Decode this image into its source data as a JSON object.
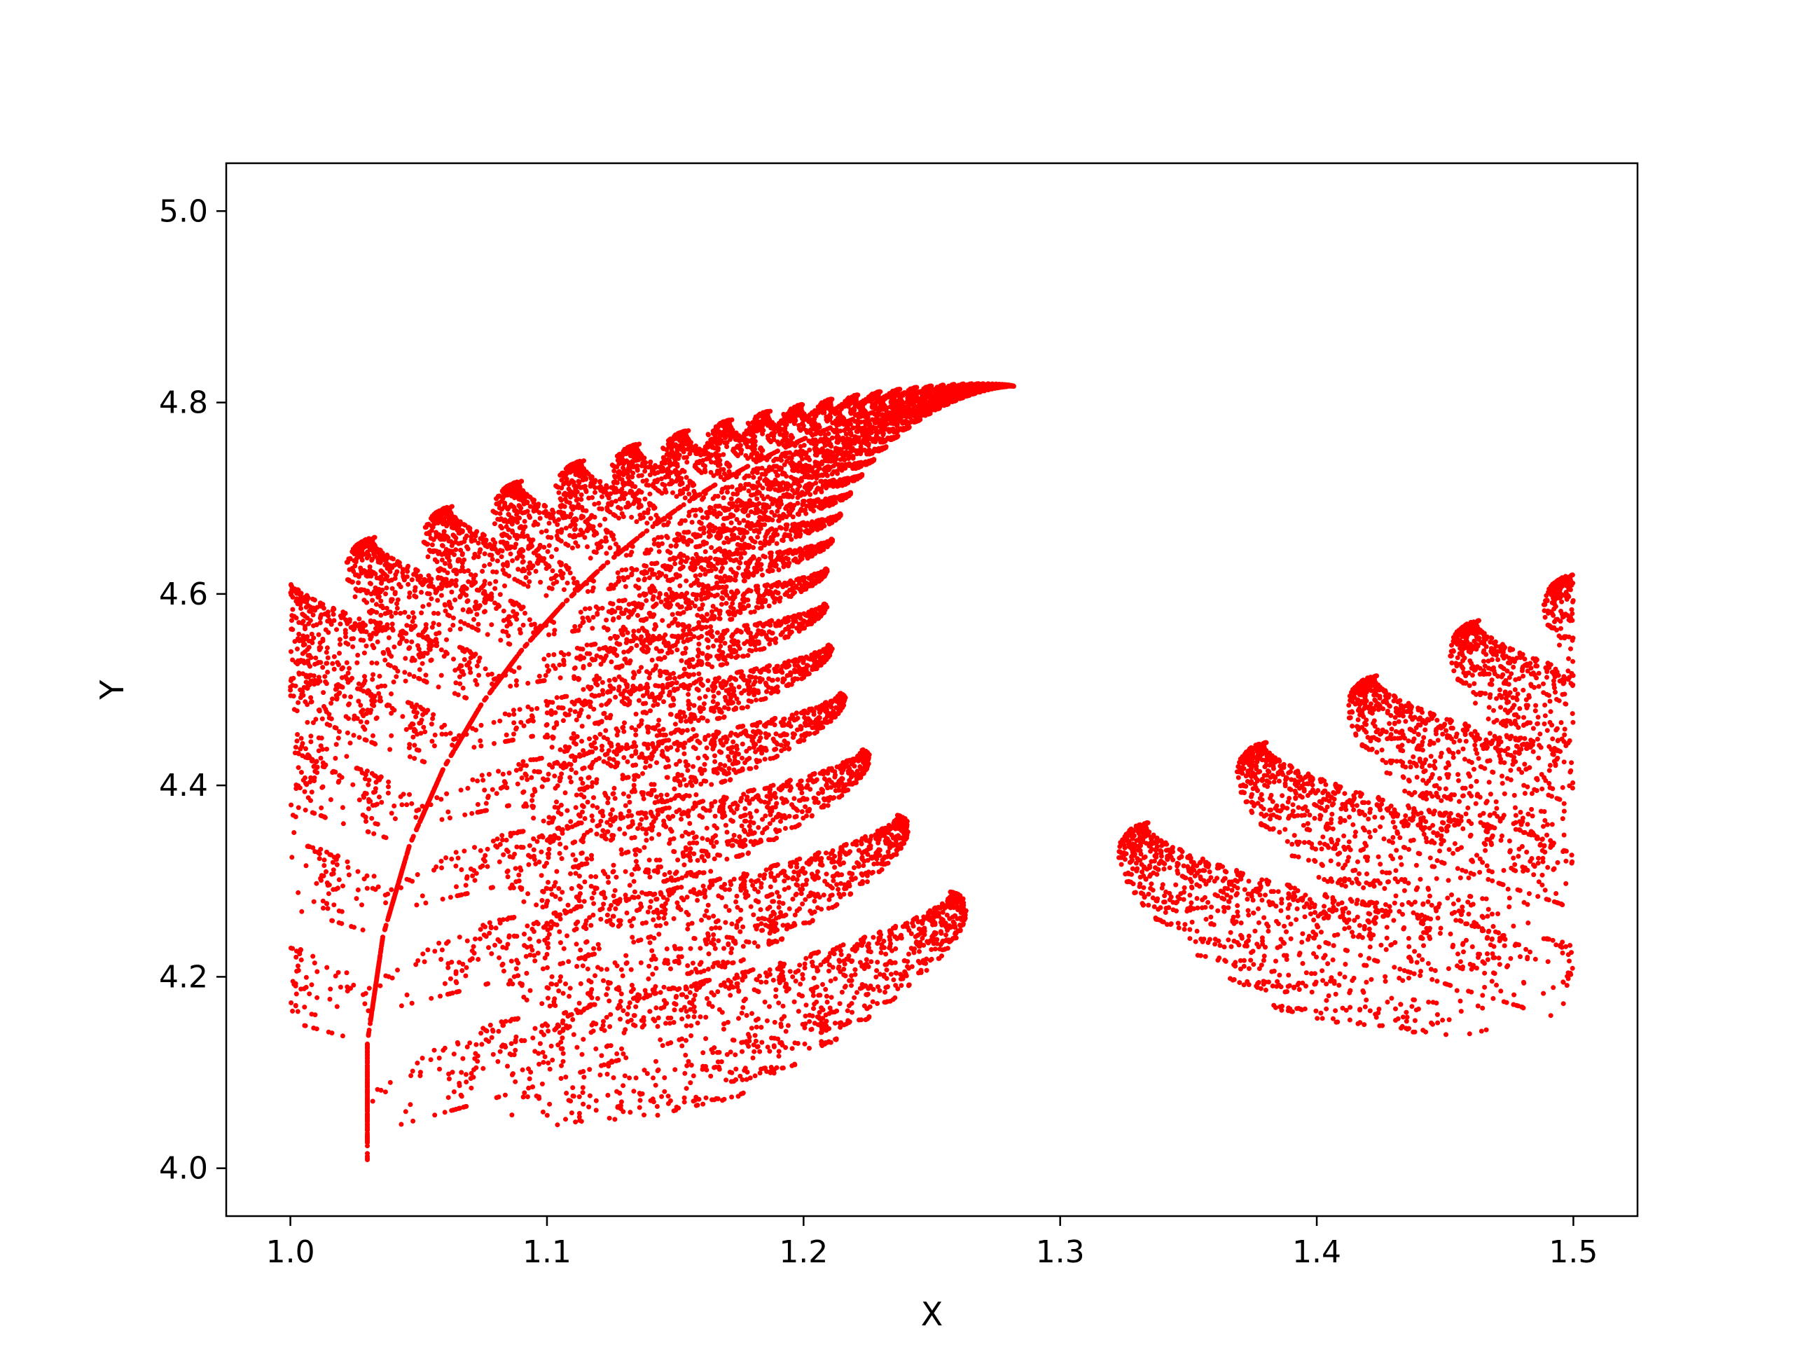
{
  "chart_data": {
    "type": "scatter",
    "title": "",
    "xlabel": "X",
    "ylabel": "Y",
    "xlim": [
      0.975,
      1.525
    ],
    "ylim": [
      3.95,
      5.05
    ],
    "xticks": [
      1.0,
      1.1,
      1.2,
      1.3,
      1.4,
      1.5
    ],
    "xtick_labels": [
      "1.0",
      "1.1",
      "1.2",
      "1.3",
      "1.4",
      "1.5"
    ],
    "yticks": [
      4.0,
      4.2,
      4.4,
      4.6,
      4.8,
      5.0
    ],
    "ytick_labels": [
      "4.0",
      "4.2",
      "4.4",
      "4.6",
      "4.8",
      "5.0"
    ],
    "grid": false,
    "legend": "none",
    "marker_color": "#ff0000",
    "description": "Barnsley-fern fractal points, wrapped into x in [1.0, 1.5] and y in [4.0, 5.0]",
    "ifs": {
      "point_count": 60000,
      "wrap": {
        "x_min": 1.0,
        "x_span": 0.5,
        "y_min": 4.0,
        "y_span": 1.0
      },
      "origin": [
        1.03,
        4.0
      ],
      "scale": [
        0.095,
        0.082
      ],
      "transforms": [
        {
          "a": 0.0,
          "b": 0.0,
          "c": 0.0,
          "d": 0.16,
          "e": 0.0,
          "f": 0.0,
          "p": 0.01
        },
        {
          "a": 0.85,
          "b": 0.04,
          "c": -0.04,
          "d": 0.85,
          "e": 0.0,
          "f": 1.6,
          "p": 0.85
        },
        {
          "a": 0.2,
          "b": -0.26,
          "c": 0.23,
          "d": 0.22,
          "e": 0.0,
          "f": 1.6,
          "p": 0.07
        },
        {
          "a": -0.15,
          "b": 0.28,
          "c": 0.26,
          "d": 0.24,
          "e": 0.0,
          "f": 0.44,
          "p": 0.07
        }
      ]
    }
  }
}
